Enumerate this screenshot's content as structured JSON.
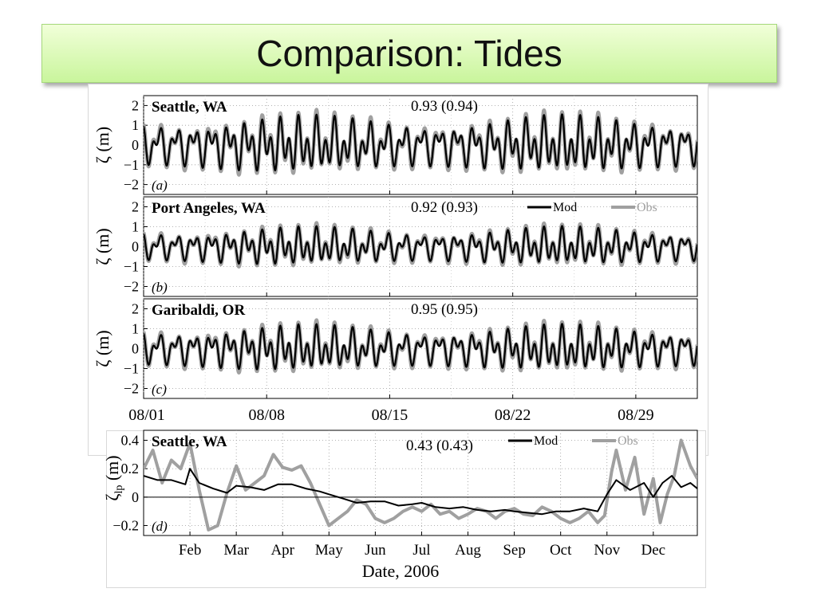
{
  "slide": {
    "title": "Comparison: Tides"
  },
  "colors": {
    "mod": "#000000",
    "obs": "#a0a0a0",
    "title_bg": "#d5f7b0"
  },
  "chart_data": [
    {
      "id": "a",
      "type": "line",
      "station": "Seattle, WA",
      "panel_label": "(a)",
      "skill": "0.93 (0.94)",
      "ylabel": "ζ (m)",
      "ylim": [
        -2.5,
        2.5
      ],
      "yticks": [
        2,
        1,
        0,
        -1,
        -2
      ],
      "ytick_labels": [
        "2",
        "1",
        "0",
        "−1",
        "−2"
      ],
      "xlim": [
        0,
        31.5
      ],
      "amplitude_m": 1.5,
      "grid": true,
      "legend": null,
      "series": [
        {
          "name": "Mod"
        },
        {
          "name": "Obs"
        }
      ]
    },
    {
      "id": "b",
      "type": "line",
      "station": "Port Angeles, WA",
      "panel_label": "(b)",
      "skill": "0.92 (0.93)",
      "ylabel": "ζ (m)",
      "ylim": [
        -2.5,
        2.5
      ],
      "yticks": [
        2,
        1,
        0,
        -1,
        -2
      ],
      "ytick_labels": [
        "2",
        "1",
        "0",
        "−1",
        "−2"
      ],
      "xlim": [
        0,
        31.5
      ],
      "amplitude_m": 1.0,
      "grid": true,
      "legend": {
        "mod": "Mod",
        "obs": "Obs",
        "position": "top-right"
      },
      "series": [
        {
          "name": "Mod"
        },
        {
          "name": "Obs"
        }
      ]
    },
    {
      "id": "c",
      "type": "line",
      "station": "Garibaldi, OR",
      "panel_label": "(c)",
      "skill": "0.95 (0.95)",
      "ylabel": "ζ (m)",
      "ylim": [
        -2.5,
        2.5
      ],
      "yticks": [
        2,
        1,
        0,
        -1,
        -2
      ],
      "ytick_labels": [
        "2",
        "1",
        "0",
        "−1",
        "−2"
      ],
      "xlim": [
        0,
        31.5
      ],
      "amplitude_m": 1.2,
      "grid": true,
      "legend": null,
      "xtick_labels": [
        "08/01",
        "08/08",
        "08/15",
        "08/22",
        "08/29"
      ],
      "xtick_days": [
        0,
        7,
        14,
        21,
        28
      ],
      "series": [
        {
          "name": "Mod"
        },
        {
          "name": "Obs"
        }
      ]
    },
    {
      "id": "d",
      "type": "line",
      "station": "Seattle, WA",
      "panel_label": "(d)",
      "skill": "0.43 (0.43)",
      "ylabel": "ζ",
      "ylabel_sub": "lp",
      "ylabel_unit": "(m)",
      "xlabel": "Date, 2006",
      "ylim": [
        -0.27,
        0.47
      ],
      "yticks": [
        0.4,
        0.2,
        0,
        -0.2
      ],
      "ytick_labels": [
        "0.4",
        "0.2",
        "0",
        "−0.2"
      ],
      "xlim": [
        1,
        12.95
      ],
      "xtick_labels": [
        "Feb",
        "Mar",
        "Apr",
        "May",
        "Jun",
        "Jul",
        "Aug",
        "Sep",
        "Oct",
        "Nov",
        "Dec"
      ],
      "xtick_months": [
        2,
        3,
        4,
        5,
        6,
        7,
        8,
        9,
        10,
        11,
        12
      ],
      "grid": true,
      "legend": {
        "mod": "Mod",
        "obs": "Obs",
        "position": "top-right"
      },
      "series": [
        {
          "name": "Mod",
          "x": [
            1.0,
            1.3,
            1.6,
            1.9,
            2.0,
            2.2,
            2.5,
            2.8,
            3.0,
            3.3,
            3.6,
            3.9,
            4.2,
            4.5,
            4.8,
            5.0,
            5.3,
            5.6,
            5.9,
            6.2,
            6.5,
            6.8,
            7.0,
            7.3,
            7.6,
            7.9,
            8.2,
            8.5,
            8.8,
            9.0,
            9.3,
            9.6,
            9.9,
            10.2,
            10.5,
            10.8,
            11.0,
            11.2,
            11.5,
            11.8,
            12.0,
            12.2,
            12.4,
            12.6,
            12.8,
            12.95
          ],
          "y": [
            0.15,
            0.12,
            0.12,
            0.09,
            0.2,
            0.1,
            0.06,
            0.03,
            0.08,
            0.07,
            0.05,
            0.09,
            0.09,
            0.06,
            0.04,
            0.02,
            -0.01,
            -0.04,
            -0.03,
            -0.03,
            -0.06,
            -0.05,
            -0.04,
            -0.07,
            -0.08,
            -0.07,
            -0.09,
            -0.1,
            -0.09,
            -0.1,
            -0.11,
            -0.12,
            -0.1,
            -0.1,
            -0.08,
            -0.1,
            0.02,
            0.12,
            0.05,
            0.1,
            0.0,
            0.1,
            0.15,
            0.07,
            0.1,
            0.06
          ]
        },
        {
          "name": "Obs",
          "x": [
            1.0,
            1.2,
            1.4,
            1.6,
            1.8,
            2.0,
            2.2,
            2.4,
            2.6,
            2.8,
            3.0,
            3.2,
            3.4,
            3.6,
            3.8,
            4.0,
            4.2,
            4.4,
            4.6,
            4.8,
            5.0,
            5.2,
            5.4,
            5.6,
            5.8,
            6.0,
            6.2,
            6.4,
            6.6,
            6.8,
            7.0,
            7.2,
            7.4,
            7.6,
            7.8,
            8.0,
            8.2,
            8.4,
            8.6,
            8.8,
            9.0,
            9.2,
            9.4,
            9.6,
            9.8,
            10.0,
            10.2,
            10.4,
            10.6,
            10.8,
            10.95,
            11.1,
            11.2,
            11.4,
            11.6,
            11.8,
            12.0,
            12.15,
            12.3,
            12.45,
            12.6,
            12.8,
            12.95
          ],
          "y": [
            0.2,
            0.33,
            0.1,
            0.26,
            0.2,
            0.38,
            0.05,
            -0.23,
            -0.2,
            0.03,
            0.22,
            0.05,
            0.1,
            0.15,
            0.3,
            0.21,
            0.19,
            0.22,
            0.1,
            -0.05,
            -0.2,
            -0.15,
            -0.1,
            -0.02,
            -0.05,
            -0.15,
            -0.18,
            -0.15,
            -0.1,
            -0.07,
            -0.1,
            -0.05,
            -0.12,
            -0.1,
            -0.15,
            -0.12,
            -0.08,
            -0.1,
            -0.15,
            -0.1,
            -0.08,
            -0.12,
            -0.13,
            -0.07,
            -0.1,
            -0.15,
            -0.18,
            -0.15,
            -0.1,
            -0.18,
            -0.13,
            0.18,
            0.33,
            0.05,
            0.28,
            -0.12,
            0.13,
            -0.18,
            0.02,
            0.15,
            0.4,
            0.22,
            0.13
          ]
        }
      ]
    }
  ]
}
